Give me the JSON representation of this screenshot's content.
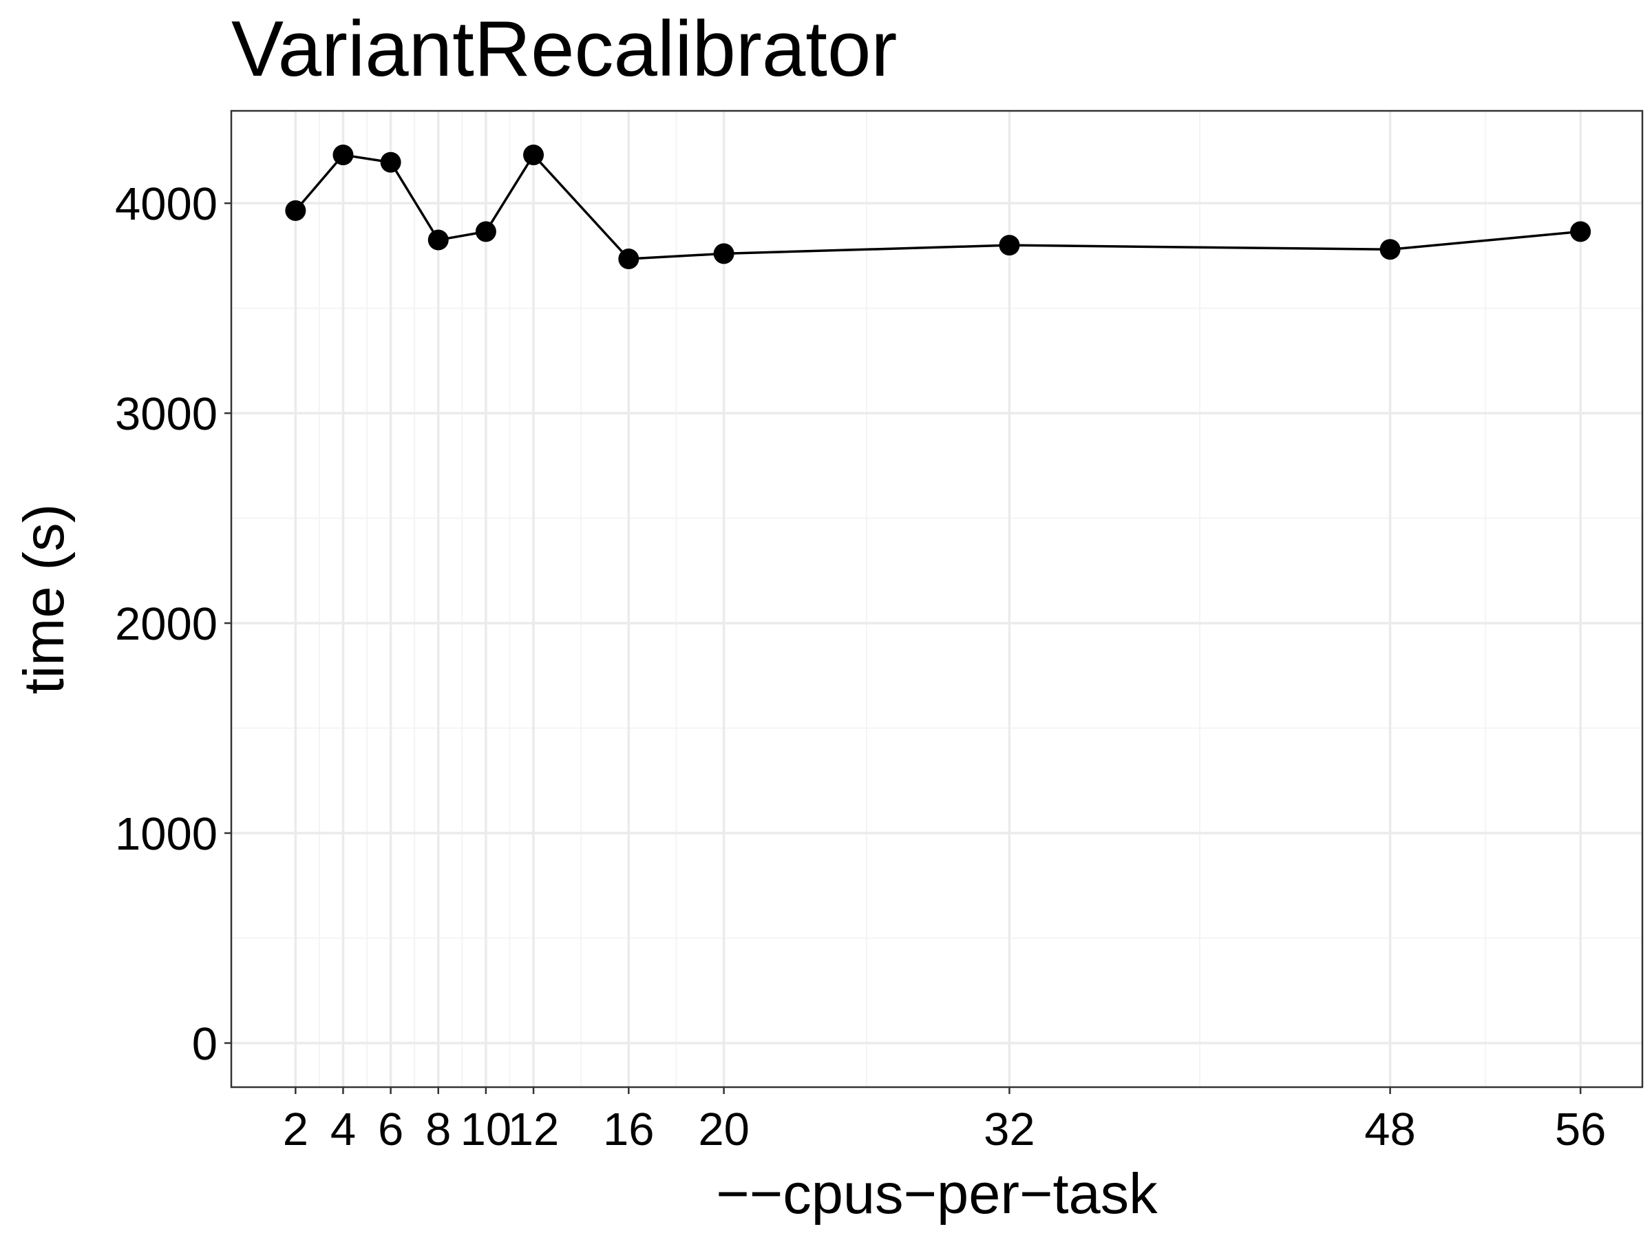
{
  "chart_data": {
    "type": "line",
    "title": "VariantRecalibrator",
    "xlabel": "−−cpus−per−task",
    "ylabel": "time (s)",
    "x": [
      2,
      4,
      6,
      8,
      10,
      12,
      16,
      20,
      32,
      48,
      56
    ],
    "series": [
      {
        "values": [
          3965,
          4230,
          4195,
          3825,
          3865,
          4230,
          3735,
          3760,
          3800,
          3780,
          3865
        ]
      }
    ],
    "x_ticks": [
      2,
      4,
      6,
      8,
      10,
      12,
      16,
      20,
      32,
      48,
      56
    ],
    "x_tick_labels": [
      "2",
      "4",
      "6",
      "8",
      "10",
      "12",
      "16",
      "20",
      "32",
      "48",
      "56"
    ],
    "y_ticks": [
      0,
      1000,
      2000,
      3000,
      4000
    ],
    "y_tick_labels": [
      "0",
      "1000",
      "2000",
      "3000",
      "4000"
    ],
    "xlim": [
      -0.7,
      58.6
    ],
    "ylim": [
      -210,
      4440
    ],
    "grid": true,
    "legend": "none",
    "colors": {
      "line": "#000000",
      "point": "#000000",
      "grid_major": "#ebebeb",
      "grid_minor": "#f4f4f4",
      "panel_border": "#333333",
      "background": "#ffffff"
    }
  }
}
